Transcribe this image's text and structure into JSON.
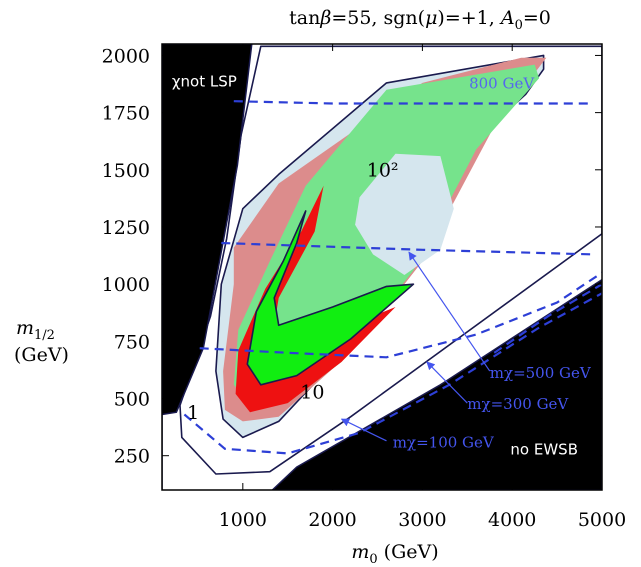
{
  "chart_data": {
    "type": "contour",
    "title": "tanβ=55, sgn(μ)=+1, A₀=0",
    "title_parts": {
      "tan": "tan",
      "beta": "β",
      "eq1": "=55, sgn(",
      "mu": "μ",
      "eq2": ")=+1, ",
      "A": "A",
      "sub0": "0",
      "eq3": "=0"
    },
    "xlabel": "m₀ (GeV)",
    "xlabel_parts": {
      "m": "m",
      "sub": "0",
      "unit": "(GeV)"
    },
    "ylabel": "m₁/₂ (GeV)",
    "ylabel_parts": {
      "m": "m",
      "sub": "1/2",
      "unit": "(GeV)"
    },
    "xlim": [
      100,
      5000
    ],
    "ylim": [
      100,
      2050
    ],
    "x_ticks": [
      {
        "value": 1000,
        "label": "1000"
      },
      {
        "value": 2000,
        "label": "2000"
      },
      {
        "value": 3000,
        "label": "3000"
      },
      {
        "value": 4000,
        "label": "4000"
      },
      {
        "value": 5000,
        "label": "5000"
      }
    ],
    "y_ticks": [
      {
        "value": 250,
        "label": "250"
      },
      {
        "value": 500,
        "label": "500"
      },
      {
        "value": 750,
        "label": "750"
      },
      {
        "value": 1000,
        "label": "1000"
      },
      {
        "value": 1250,
        "label": "1250"
      },
      {
        "value": 1500,
        "label": "1500"
      },
      {
        "value": 1750,
        "label": "1750"
      },
      {
        "value": 2000,
        "label": "2000"
      }
    ],
    "excluded_regions": [
      {
        "name": "chi-not-lsp",
        "label": "χnot LSP",
        "color": "#000000",
        "points": [
          [
            100,
            100
          ],
          [
            100,
            2050
          ],
          [
            1100,
            2050
          ],
          [
            940,
            1520
          ],
          [
            560,
            720
          ],
          [
            260,
            440
          ],
          [
            100,
            430
          ]
        ]
      },
      {
        "name": "no-ewsb",
        "label": "no EWSB",
        "color": "#000000",
        "points": [
          [
            5000,
            100
          ],
          [
            1330,
            100
          ],
          [
            1600,
            200
          ],
          [
            3200,
            560
          ],
          [
            5000,
            1020
          ]
        ]
      }
    ],
    "contours": [
      {
        "name": "band-1",
        "label": "1",
        "color": "#ffffff",
        "stroke": "#1a1a4e",
        "points": [
          [
            1200,
            2040
          ],
          [
            5000,
            2040
          ],
          [
            5000,
            1220
          ],
          [
            2200,
            420
          ],
          [
            1300,
            180
          ],
          [
            700,
            170
          ],
          [
            320,
            330
          ],
          [
            300,
            470
          ],
          [
            640,
            860
          ],
          [
            820,
            1200
          ],
          [
            980,
            1650
          ]
        ]
      },
      {
        "name": "band-10",
        "label": "10",
        "color": "#d5e6ee",
        "stroke": "#1a1a4e",
        "points": [
          [
            1400,
            1480
          ],
          [
            2600,
            1880
          ],
          [
            4350,
            2000
          ],
          [
            4350,
            1940
          ],
          [
            4150,
            1830
          ],
          [
            3700,
            1670
          ],
          [
            3100,
            1210
          ],
          [
            2400,
            820
          ],
          [
            1400,
            400
          ],
          [
            1000,
            330
          ],
          [
            780,
            410
          ],
          [
            700,
            620
          ],
          [
            760,
            1000
          ],
          [
            1000,
            1330
          ]
        ]
      },
      {
        "name": "band-pink",
        "color": "#dc8c8c",
        "points": [
          [
            900,
            1160
          ],
          [
            1400,
            1440
          ],
          [
            3000,
            1880
          ],
          [
            4100,
            1990
          ],
          [
            4380,
            1990
          ],
          [
            3800,
            1690
          ],
          [
            3000,
            1100
          ],
          [
            2200,
            700
          ],
          [
            1400,
            420
          ],
          [
            1000,
            400
          ],
          [
            800,
            450
          ],
          [
            780,
            620
          ],
          [
            900,
            1000
          ]
        ]
      },
      {
        "name": "band-green",
        "color": "#76e38c",
        "points": [
          [
            1700,
            1430
          ],
          [
            2600,
            1850
          ],
          [
            4250,
            1960
          ],
          [
            4300,
            1900
          ],
          [
            3600,
            1590
          ],
          [
            2900,
            1060
          ],
          [
            2100,
            660
          ],
          [
            1500,
            480
          ],
          [
            1100,
            470
          ],
          [
            900,
            560
          ],
          [
            950,
            800
          ],
          [
            1300,
            1100
          ]
        ]
      },
      {
        "name": "band-red",
        "color": "#ee1111",
        "points": [
          [
            1900,
            1430
          ],
          [
            1650,
            1230
          ],
          [
            1250,
            980
          ],
          [
            950,
            710
          ],
          [
            920,
            520
          ],
          [
            1080,
            440
          ],
          [
            1500,
            480
          ],
          [
            2100,
            660
          ],
          [
            2700,
            900
          ],
          [
            2200,
            820
          ],
          [
            1600,
            640
          ],
          [
            1300,
            700
          ],
          [
            1400,
            940
          ],
          [
            1800,
            1230
          ]
        ]
      },
      {
        "name": "band-bright-green",
        "color": "#11ee11",
        "stroke": "#1a1a4e",
        "points": [
          [
            1700,
            1320
          ],
          [
            1450,
            1100
          ],
          [
            1150,
            880
          ],
          [
            1050,
            650
          ],
          [
            1200,
            560
          ],
          [
            1600,
            600
          ],
          [
            2200,
            760
          ],
          [
            2900,
            1000
          ],
          [
            2600,
            990
          ],
          [
            2000,
            900
          ],
          [
            1400,
            820
          ],
          [
            1350,
            940
          ],
          [
            1600,
            1180
          ]
        ]
      },
      {
        "name": "band-100",
        "label": "10²",
        "color": "#d5e6ee",
        "points": [
          [
            2300,
            1380
          ],
          [
            2700,
            1570
          ],
          [
            3200,
            1560
          ],
          [
            3350,
            1330
          ],
          [
            3200,
            1150
          ],
          [
            2800,
            1040
          ],
          [
            2450,
            1130
          ],
          [
            2250,
            1260
          ]
        ]
      }
    ],
    "mass_contours": [
      {
        "name": "mass-800",
        "label": "800 GeV",
        "color": "#2d3fd6",
        "points": [
          [
            900,
            1800
          ],
          [
            2000,
            1790
          ],
          [
            4900,
            1790
          ]
        ]
      },
      {
        "name": "mass-500",
        "label": "m_χ=500 GeV",
        "color": "#2d3fd6",
        "points": [
          [
            760,
            1180
          ],
          [
            1500,
            1170
          ],
          [
            3000,
            1150
          ],
          [
            4900,
            1130
          ]
        ]
      },
      {
        "name": "mass-300",
        "label": "m_χ=300 GeV",
        "color": "#2d3fd6",
        "points": [
          [
            520,
            720
          ],
          [
            1500,
            700
          ],
          [
            2600,
            680
          ],
          [
            3600,
            780
          ],
          [
            4500,
            920
          ],
          [
            5000,
            1050
          ]
        ]
      },
      {
        "name": "mass-100",
        "label": "m_χ=100 GeV",
        "color": "#2d3fd6",
        "points": [
          [
            350,
            430
          ],
          [
            800,
            280
          ],
          [
            1500,
            260
          ],
          [
            2300,
            350
          ],
          [
            3300,
            560
          ],
          [
            4300,
            810
          ],
          [
            5000,
            960
          ]
        ]
      },
      {
        "name": "mass-extra",
        "color": "#2d3fd6",
        "points": [
          [
            3800,
            700
          ],
          [
            4400,
            860
          ],
          [
            5000,
            1000
          ]
        ]
      }
    ],
    "text_labels": [
      {
        "name": "label-chi-not-lsp",
        "text": "χnot LSP",
        "x": 210,
        "y": 1865,
        "color": "#ffffff",
        "sans": true
      },
      {
        "name": "label-800",
        "text": "800 GeV",
        "x": 3520,
        "y": 1855,
        "color": "#5566ee",
        "sans": false
      },
      {
        "name": "label-10-squared",
        "text": "10²",
        "x": 2380,
        "y": 1470,
        "color": "#000000",
        "sans": false
      },
      {
        "name": "label-10",
        "text": "10",
        "x": 1640,
        "y": 500,
        "color": "#000000",
        "sans": false
      },
      {
        "name": "label-1",
        "text": "1",
        "x": 380,
        "y": 410,
        "color": "#000000",
        "sans": false
      },
      {
        "name": "label-m500",
        "text": "mχ=500 GeV",
        "x": 3750,
        "y": 590,
        "color": "#4455ee",
        "sans": false
      },
      {
        "name": "label-m300",
        "text": "mχ=300 GeV",
        "x": 3500,
        "y": 455,
        "color": "#4455ee",
        "sans": false
      },
      {
        "name": "label-m100",
        "text": "mχ=100 GeV",
        "x": 2670,
        "y": 285,
        "color": "#4455ee",
        "sans": false
      },
      {
        "name": "label-no-ewsb",
        "text": "no EWSB",
        "x": 3980,
        "y": 255,
        "color": "#ffffff",
        "sans": true
      }
    ],
    "arrows": [
      {
        "name": "arrow-m500",
        "from": [
          3750,
          620
        ],
        "to": [
          2850,
          1140
        ],
        "color": "#4455ee"
      },
      {
        "name": "arrow-m300",
        "from": [
          3500,
          480
        ],
        "to": [
          3050,
          660
        ],
        "color": "#4455ee"
      },
      {
        "name": "arrow-m100",
        "from": [
          2600,
          315
        ],
        "to": [
          2100,
          410
        ],
        "color": "#4455ee"
      }
    ]
  }
}
